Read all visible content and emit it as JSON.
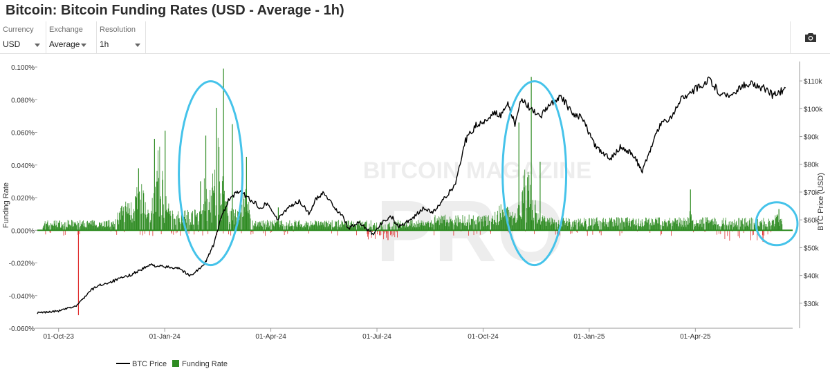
{
  "title": "Bitcoin: Bitcoin Funding Rates (USD - Average - 1h)",
  "controls": [
    {
      "label": "Currency",
      "value": "USD"
    },
    {
      "label": "Exchange",
      "value": "Average"
    },
    {
      "label": "Resolution",
      "value": "1h"
    }
  ],
  "toolbar": {
    "camera_icon": "camera-icon"
  },
  "watermark": {
    "line1": "BITCOIN MAGAZINE",
    "line2": "PRO"
  },
  "colors": {
    "price_line": "#000000",
    "funding_positive": "#2e8b22",
    "funding_negative": "#e03030",
    "highlight_circle": "#45c3ea",
    "axis": "#9a9a9a"
  },
  "chart_data": {
    "type": "bar+line",
    "title": "Bitcoin: Bitcoin Funding Rates (USD - Average - 1h)",
    "y_left_label": "Funding Rate",
    "y_right_label": "BTC Price (USD)",
    "y_left_ticks": [
      "0.100%",
      "0.080%",
      "0.060%",
      "0.040%",
      "0.020%",
      "0.000%",
      "-0.020%",
      "-0.040%",
      "-0.060%"
    ],
    "y_left_range": [
      -0.06,
      0.1
    ],
    "y_right_ticks": [
      "$110k",
      "$100k",
      "$90k",
      "$80k",
      "$70k",
      "$60k",
      "$50k",
      "$40k",
      "$30k"
    ],
    "y_right_range": [
      21000,
      115000
    ],
    "x_ticks": [
      "01-Oct-23",
      "01-Jan-24",
      "01-Apr-24",
      "01-Jul-24",
      "01-Oct-24",
      "01-Jan-25",
      "01-Apr-25"
    ],
    "x_range_months": [
      -0.6,
      20.75
    ],
    "legend": [
      {
        "name": "BTC Price",
        "kind": "line"
      },
      {
        "name": "Funding Rate",
        "kind": "bar"
      }
    ],
    "btc_price": {
      "months_since_oct23": [
        -0.6,
        0,
        0.5,
        0.9,
        1.1,
        1.5,
        2.0,
        2.6,
        3.0,
        3.4,
        3.7,
        4.1,
        4.4,
        4.6,
        4.8,
        5.1,
        5.4,
        5.7,
        5.9,
        6.2,
        6.5,
        6.8,
        7.1,
        7.3,
        7.5,
        7.8,
        8.0,
        8.2,
        8.5,
        8.9,
        9.1,
        9.4,
        9.6,
        10.0,
        10.3,
        10.6,
        10.9,
        11.2,
        11.5,
        11.8,
        12.1,
        12.3,
        12.5,
        12.7,
        12.9,
        13.1,
        13.3,
        13.6,
        13.9,
        14.2,
        14.5,
        14.8,
        15.1,
        15.3,
        15.6,
        15.9,
        16.2,
        16.5,
        16.7,
        17.0,
        17.3,
        17.6,
        18.0,
        18.4,
        18.7,
        19.0,
        19.3,
        19.6,
        19.9,
        20.2,
        20.4,
        20.55
      ],
      "values": [
        26500,
        27200,
        29000,
        34500,
        36200,
        37800,
        40000,
        43800,
        43000,
        42800,
        39800,
        43500,
        51500,
        61000,
        67000,
        70500,
        67500,
        64500,
        66000,
        60000,
        64800,
        66500,
        62300,
        68000,
        70000,
        64500,
        61700,
        57000,
        59000,
        55000,
        58500,
        61500,
        57500,
        60500,
        64000,
        62800,
        67500,
        72500,
        88500,
        94000,
        96000,
        99000,
        97200,
        101500,
        94500,
        104000,
        100500,
        96500,
        102000,
        104500,
        98500,
        97000,
        88000,
        84500,
        82200,
        86500,
        84000,
        77800,
        84000,
        94500,
        96500,
        104000,
        107000,
        110500,
        105500,
        104500,
        108500,
        109000,
        107500,
        104800,
        106000,
        107500
      ]
    },
    "funding_rate": {
      "summary": "hourly average funding rate, mostly +0.002% to +0.010%; spikes to ~+0.060% (Dec-23), ~+0.099% (Mar-24), ~+0.094% (Dec-24); lowest -0.052% (Oct-23)",
      "key_points_months": [
        -0.35,
        0.55,
        2.25,
        2.7,
        3.0,
        4.0,
        4.15,
        4.45,
        4.65,
        4.9,
        5.3,
        6.2,
        9.3,
        13.0,
        13.35,
        13.6,
        17.85,
        19.9,
        20.35
      ],
      "key_points_values_pct": [
        0.004,
        -0.052,
        0.038,
        0.056,
        0.061,
        0.03,
        0.058,
        0.075,
        0.099,
        0.065,
        0.045,
        0.014,
        -0.006,
        0.066,
        0.094,
        0.042,
        0.025,
        -0.007,
        0.013
      ]
    },
    "highlights": [
      "Mar-24 funding spike",
      "Dec-24 funding spike",
      "Jun-25 recent level"
    ]
  }
}
